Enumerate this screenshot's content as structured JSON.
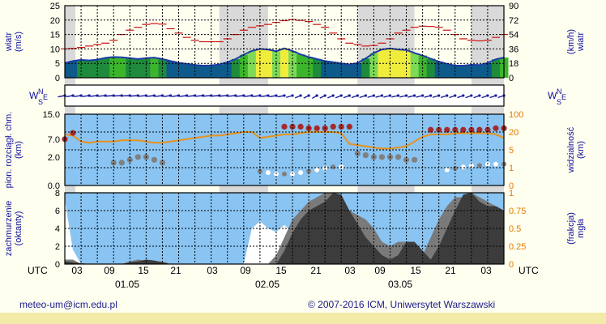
{
  "footer": {
    "contact": "meteo-um@icm.edu.pl",
    "copyright": "© 2007-2016 ICM, Uniwersytet Warszawski"
  },
  "colors": {
    "frame": "#000000",
    "panel_bg": "#89c4f2",
    "night_band": "#d9d9d9",
    "wind_line": "#1c3ca8",
    "gust": "#cc1111",
    "visibility": "#e8921a",
    "cloud_base_high": "#a52a2a",
    "cloud_base_mid": "#808080",
    "cloud_base_low": "#ffffff",
    "fog": "#ffffff",
    "cloud_dark": "#3c3c3c",
    "cloud_mid": "#7a7a7a",
    "label_blue": "#1010a0",
    "label_orange": "#e07b00"
  },
  "chart_data": [
    {
      "type": "area",
      "panel": "wind",
      "ylabel_left": "wiatr\n(m/s)",
      "ylabel_right": "(km/h)\nwiatr",
      "yticks_left": [
        "25",
        "20",
        "15",
        "10",
        "5",
        "0"
      ],
      "yticks_right": [
        "90",
        "72",
        "54",
        "36",
        "18",
        "0"
      ],
      "ylim": [
        0,
        25
      ],
      "series": [
        {
          "values": [
            5.1,
            5.8,
            6.2,
            6.0,
            6.3,
            6.9,
            7.2,
            7.1,
            6.8,
            6.5,
            6.8,
            7.0,
            6.5,
            5.8,
            5.2,
            4.8,
            4.4,
            4.2,
            4.3,
            4.6,
            5.4,
            6.5,
            8.0,
            9.3,
            10.0,
            9.8,
            9.2,
            10.2,
            9.3,
            8.1,
            7.2,
            6.5,
            5.8,
            5.4,
            5.0,
            4.6,
            5.1,
            6.7,
            8.6,
            9.8,
            10.2,
            9.8,
            9.6,
            8.6,
            7.7,
            6.6,
            5.6,
            4.8,
            4.2,
            4.2,
            4.5,
            4.4,
            5.1,
            6.4,
            7.0
          ]
        },
        {
          "values": [
            10.0,
            10.2,
            10.5,
            11.0,
            11.5,
            12.0,
            13.0,
            15.0,
            16.5,
            17.5,
            18.5,
            18.8,
            18.6,
            17.0,
            15.5,
            14.0,
            13.0,
            12.5,
            12.5,
            12.5,
            13.5,
            15.0,
            16.5,
            17.5,
            18.0,
            18.5,
            19.2,
            19.8,
            20.2,
            19.9,
            19.5,
            18.5,
            17.5,
            15.5,
            13.5,
            12.0,
            11.5,
            11.0,
            11.2,
            12.0,
            13.5,
            15.5,
            16.5,
            17.5,
            17.9,
            17.8,
            17.5,
            16.5,
            15.0,
            13.5,
            13.0,
            12.8,
            13.0,
            14.0,
            15.0
          ]
        }
      ]
    },
    {
      "type": "scatter",
      "panel": "wind-direction",
      "ylabel_left": "W S E N",
      "ylabel_right": "W S E N",
      "values": [
        250,
        252,
        255,
        255,
        258,
        260,
        262,
        265,
        265,
        262,
        260,
        258,
        256,
        255,
        255,
        256,
        258,
        260,
        262,
        262,
        262,
        260,
        258,
        256,
        255,
        254,
        252,
        250,
        240,
        230,
        225,
        220,
        225,
        230,
        232,
        234,
        236,
        238,
        240,
        242,
        244,
        246,
        246,
        245,
        244,
        242,
        240,
        238,
        236,
        235,
        234,
        234,
        234,
        235,
        236
      ]
    },
    {
      "type": "line",
      "panel": "clouds-visibility",
      "ylabel_left": "pion. rozciągł. chm.\n(km)",
      "ylabel_right": "widzialność\n(km)",
      "yticks_left": [
        "15.0",
        "7.0",
        "2.0",
        "0.0"
      ],
      "yticks_right": [
        "100",
        "20",
        "5",
        "1",
        "0"
      ],
      "series": [
        {
          "values": [
            18,
            17,
            12,
            11,
            12,
            12,
            12,
            13,
            13,
            13,
            12,
            11,
            11,
            12,
            13,
            14,
            15,
            16,
            17,
            17,
            18,
            19,
            20,
            20,
            15,
            16,
            17,
            18,
            18,
            19,
            20,
            21,
            20,
            20,
            19,
            10,
            9,
            8,
            7,
            6,
            6,
            7,
            8,
            12,
            16,
            18,
            18,
            18,
            19,
            19,
            19,
            19,
            19,
            18,
            15
          ]
        },
        {
          "values": [
            7.0,
            9.0,
            null,
            null,
            null,
            null,
            1.6,
            1.6,
            1.8,
            2.0,
            2.0,
            1.8,
            1.6,
            null,
            null,
            null,
            null,
            null,
            null,
            null,
            null,
            null,
            null,
            null,
            null,
            null,
            null,
            11.0,
            11.0,
            11.0,
            10.5,
            10.5,
            10.5,
            11.0,
            11.0,
            11.0,
            3.0,
            2.5,
            2.0,
            2.0,
            2.0,
            2.0,
            1.8,
            1.8,
            null,
            10.0,
            10.0,
            10.0,
            10.0,
            10.0,
            10.0,
            10.0,
            10.0,
            10.5,
            10.5
          ]
        },
        {
          "values": [
            null,
            null,
            null,
            null,
            null,
            null,
            null,
            null,
            null,
            null,
            null,
            null,
            null,
            null,
            null,
            null,
            null,
            null,
            null,
            null,
            null,
            null,
            null,
            null,
            1.0,
            0.9,
            0.8,
            0.8,
            0.8,
            0.9,
            1.0,
            1.1,
            1.2,
            1.3,
            1.3,
            null,
            null,
            null,
            null,
            null,
            null,
            null,
            null,
            null,
            null,
            null,
            null,
            1.1,
            1.2,
            1.3,
            1.4,
            1.4,
            1.5,
            1.5,
            1.5
          ]
        }
      ]
    },
    {
      "type": "area",
      "panel": "cloud-cover-fog",
      "ylabel_left": "zachmurzenie\n(oktanty)",
      "ylabel_right": "(frakcja)\nmgła",
      "yticks_left": [
        "8",
        "6",
        "4",
        "2",
        "0"
      ],
      "yticks_right": [
        "1",
        "0.75",
        "0.5",
        "0.25",
        "0"
      ],
      "ylim": [
        0,
        8
      ],
      "series": [
        {
          "values": [
            0.3,
            0.2,
            0.1,
            0,
            0,
            0,
            0,
            0,
            0.2,
            0.3,
            0.5,
            0.4,
            0.2,
            0,
            0,
            0,
            0,
            0,
            0,
            0,
            0,
            0,
            0,
            0,
            0,
            0,
            0,
            1.5,
            3.5,
            5.0,
            6.0,
            6.5,
            7.0,
            8.0,
            7.8,
            6.0,
            4.5,
            3.0,
            2.0,
            1.0,
            0.5,
            1.0,
            2.5,
            2.5,
            1.5,
            0.5,
            2.0,
            4.0,
            6.0,
            7.8,
            8.0,
            7.0,
            6.5,
            6.5,
            6.0
          ]
        },
        {
          "values": [
            0.5,
            0.5,
            0,
            0,
            0,
            0,
            0,
            0,
            0.3,
            0.5,
            0.4,
            0.3,
            0.3,
            0,
            0,
            0,
            0,
            0,
            0,
            0,
            0,
            0,
            0,
            0,
            0,
            0,
            1.0,
            3.0,
            5.0,
            6.0,
            7.0,
            7.5,
            8.0,
            8.0,
            7.0,
            6.0,
            5.5,
            5.0,
            4.0,
            2.5,
            2.0,
            2.5,
            2.5,
            1.5,
            1.0,
            3.0,
            5.0,
            6.5,
            7.5,
            7.5,
            8.0,
            7.5,
            7.0,
            6.5,
            6.0
          ]
        },
        {
          "values": [
            0.9,
            0.2,
            0,
            0,
            0,
            0,
            0,
            0,
            0,
            0,
            0,
            0,
            0,
            0,
            0,
            0,
            0,
            0,
            0,
            0,
            0,
            0,
            0,
            0.5,
            0.6,
            0.5,
            0.45,
            0.55,
            0.45,
            0.2,
            0.05,
            0,
            0,
            0,
            0,
            0,
            0,
            0,
            0,
            0,
            0,
            0,
            0,
            0,
            0,
            0,
            0,
            0,
            0,
            0,
            0,
            0,
            0,
            0.5,
            0.8
          ]
        }
      ]
    },
    {
      "type": "table",
      "panel": "time-axis",
      "utc_label": "UTC",
      "hour_ticks": [
        "03",
        "09",
        "15",
        "21",
        "03",
        "09",
        "15",
        "21",
        "03",
        "09",
        "15",
        "21",
        "03"
      ],
      "dates": [
        "01.05",
        "02.05",
        "03.05"
      ]
    }
  ]
}
